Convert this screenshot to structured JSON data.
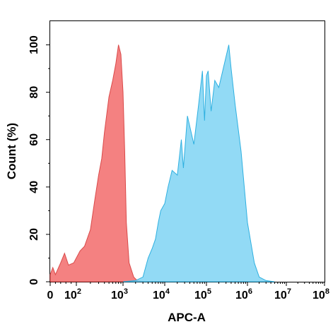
{
  "chart_data": {
    "type": "area",
    "xlabel": "APC-A",
    "ylabel": "Count  (%)",
    "x_scale": "biexponential",
    "ylim": [
      0,
      110
    ],
    "grid": false,
    "x_ticks": [
      {
        "value": 0,
        "base": "0",
        "exp": ""
      },
      {
        "value": 100,
        "base": "10",
        "exp": "2"
      },
      {
        "value": 1000,
        "base": "10",
        "exp": "3"
      },
      {
        "value": 10000,
        "base": "10",
        "exp": "4"
      },
      {
        "value": 100000,
        "base": "10",
        "exp": "5"
      },
      {
        "value": 1000000,
        "base": "10",
        "exp": "6"
      },
      {
        "value": 10000000,
        "base": "10",
        "exp": "7"
      },
      {
        "value": 100000000,
        "base": "10",
        "exp": "8"
      }
    ],
    "y_ticks": [
      0,
      20,
      40,
      60,
      80,
      100
    ],
    "series": [
      {
        "color": "#f26b6b",
        "stroke": "#d94a4a",
        "points": [
          [
            0,
            3
          ],
          [
            10,
            6
          ],
          [
            20,
            3
          ],
          [
            40,
            8
          ],
          [
            55,
            12
          ],
          [
            70,
            7
          ],
          [
            90,
            8
          ],
          [
            120,
            13
          ],
          [
            150,
            15
          ],
          [
            200,
            22
          ],
          [
            250,
            35
          ],
          [
            300,
            45
          ],
          [
            350,
            52
          ],
          [
            400,
            63
          ],
          [
            500,
            78
          ],
          [
            600,
            85
          ],
          [
            700,
            92
          ],
          [
            800,
            100
          ],
          [
            900,
            96
          ],
          [
            1000,
            80
          ],
          [
            1100,
            55
          ],
          [
            1200,
            25
          ],
          [
            1400,
            8
          ],
          [
            1800,
            2
          ],
          [
            2200,
            0.5
          ],
          [
            3000,
            0
          ]
        ]
      },
      {
        "color": "#7fd4f3",
        "stroke": "#2fb0e0",
        "points": [
          [
            1000,
            0
          ],
          [
            2000,
            0.5
          ],
          [
            3000,
            2
          ],
          [
            4000,
            10
          ],
          [
            5000,
            14
          ],
          [
            6000,
            18
          ],
          [
            7000,
            25
          ],
          [
            8000,
            30
          ],
          [
            10000,
            33
          ],
          [
            12000,
            40
          ],
          [
            15000,
            47
          ],
          [
            20000,
            45
          ],
          [
            25000,
            60
          ],
          [
            28000,
            48
          ],
          [
            35000,
            70
          ],
          [
            50000,
            58
          ],
          [
            65000,
            75
          ],
          [
            80000,
            89
          ],
          [
            90000,
            68
          ],
          [
            100000,
            87
          ],
          [
            110000,
            89
          ],
          [
            130000,
            72
          ],
          [
            160000,
            85
          ],
          [
            200000,
            82
          ],
          [
            300000,
            95
          ],
          [
            350000,
            100
          ],
          [
            400000,
            90
          ],
          [
            500000,
            75
          ],
          [
            700000,
            55
          ],
          [
            1000000,
            25
          ],
          [
            1500000,
            8
          ],
          [
            2000000,
            2
          ],
          [
            3000000,
            0.5
          ],
          [
            5000000,
            0
          ]
        ]
      }
    ]
  }
}
